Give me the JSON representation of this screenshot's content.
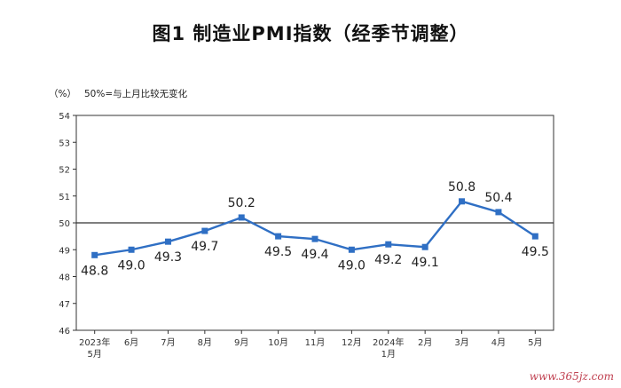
{
  "chart_data": {
    "type": "line",
    "title": "图1  制造业PMI指数（经季节调整）",
    "unit_label": "（%）",
    "reference_note": "50%=与上月比较无变化",
    "categories": [
      [
        "2023年",
        "5月"
      ],
      [
        "6月"
      ],
      [
        "7月"
      ],
      [
        "8月"
      ],
      [
        "9月"
      ],
      [
        "10月"
      ],
      [
        "11月"
      ],
      [
        "12月"
      ],
      [
        "2024年",
        "1月"
      ],
      [
        "2月"
      ],
      [
        "3月"
      ],
      [
        "4月"
      ],
      [
        "5月"
      ]
    ],
    "values": [
      48.8,
      49.0,
      49.3,
      49.7,
      50.2,
      49.5,
      49.4,
      49.0,
      49.2,
      49.1,
      50.8,
      50.4,
      49.5
    ],
    "data_labels": [
      "48.8",
      "49.0",
      "49.3",
      "49.7",
      "50.2",
      "49.5",
      "49.4",
      "49.0",
      "49.2",
      "49.1",
      "50.8",
      "50.4",
      "49.5"
    ],
    "y_ticks": [
      46,
      47,
      48,
      49,
      50,
      51,
      52,
      53,
      54
    ],
    "ylim": [
      46,
      54
    ],
    "reference_line": 50,
    "line_color": "#2f6fc4",
    "grid": false
  },
  "watermark": "www.365jz.com"
}
